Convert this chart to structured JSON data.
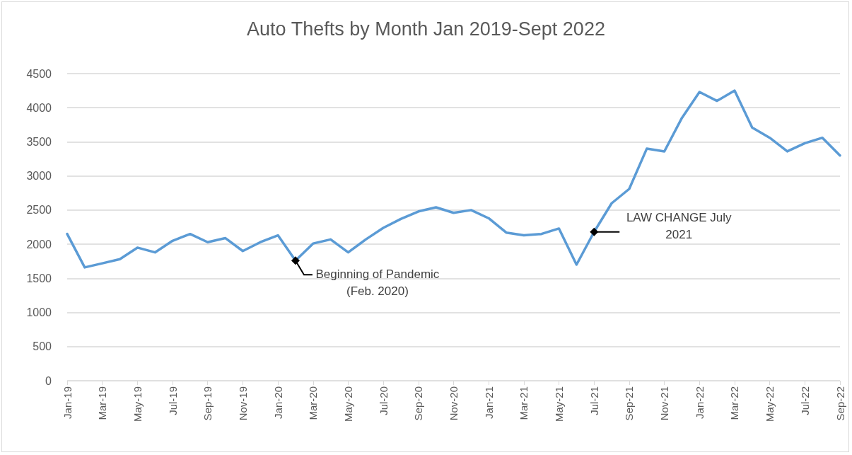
{
  "chart_data": {
    "type": "line",
    "title": "Auto Thefts by Month Jan 2019-Sept 2022",
    "categories": [
      "Jan-19",
      null,
      "Mar-19",
      null,
      "May-19",
      null,
      "Jul-19",
      null,
      "Sep-19",
      null,
      "Nov-19",
      null,
      "Jan-20",
      null,
      "Mar-20",
      null,
      "May-20",
      null,
      "Jul-20",
      null,
      "Sep-20",
      null,
      "Nov-20",
      null,
      "Jan-21",
      null,
      "Mar-21",
      null,
      "May-21",
      null,
      "Jul-21",
      null,
      "Sep-21",
      null,
      "Nov-21",
      null,
      "Jan-22",
      null,
      "Mar-22",
      null,
      "May-22",
      null,
      "Jul-22",
      null,
      "Sep-22"
    ],
    "series": [
      {
        "color": "#5b9bd5",
        "values": [
          2150,
          1660,
          1720,
          1780,
          1950,
          1880,
          2050,
          2150,
          2030,
          2090,
          1900,
          2030,
          2130,
          1760,
          2010,
          2070,
          1880,
          2070,
          2240,
          2370,
          2480,
          2540,
          2460,
          2500,
          2380,
          2170,
          2130,
          2150,
          2230,
          1700,
          2180,
          2600,
          2810,
          3400,
          3360,
          3850,
          4230,
          4100,
          4250,
          3710,
          3560,
          3360,
          3480,
          3560,
          3300
        ]
      }
    ],
    "ylim": [
      0,
      4500
    ],
    "yticks": [
      0,
      500,
      1000,
      1500,
      2000,
      2500,
      3000,
      3500,
      4000,
      4500
    ],
    "grid": "y",
    "legend": false,
    "marker": "none",
    "line_style": "solid",
    "annotations": [
      "Beginning of Pandemic (Feb. 2020)",
      {
        "text": "LAW CHANGE July 2021",
        "x": "Jul-21",
        "y": 2180
      }
    ]
  }
}
